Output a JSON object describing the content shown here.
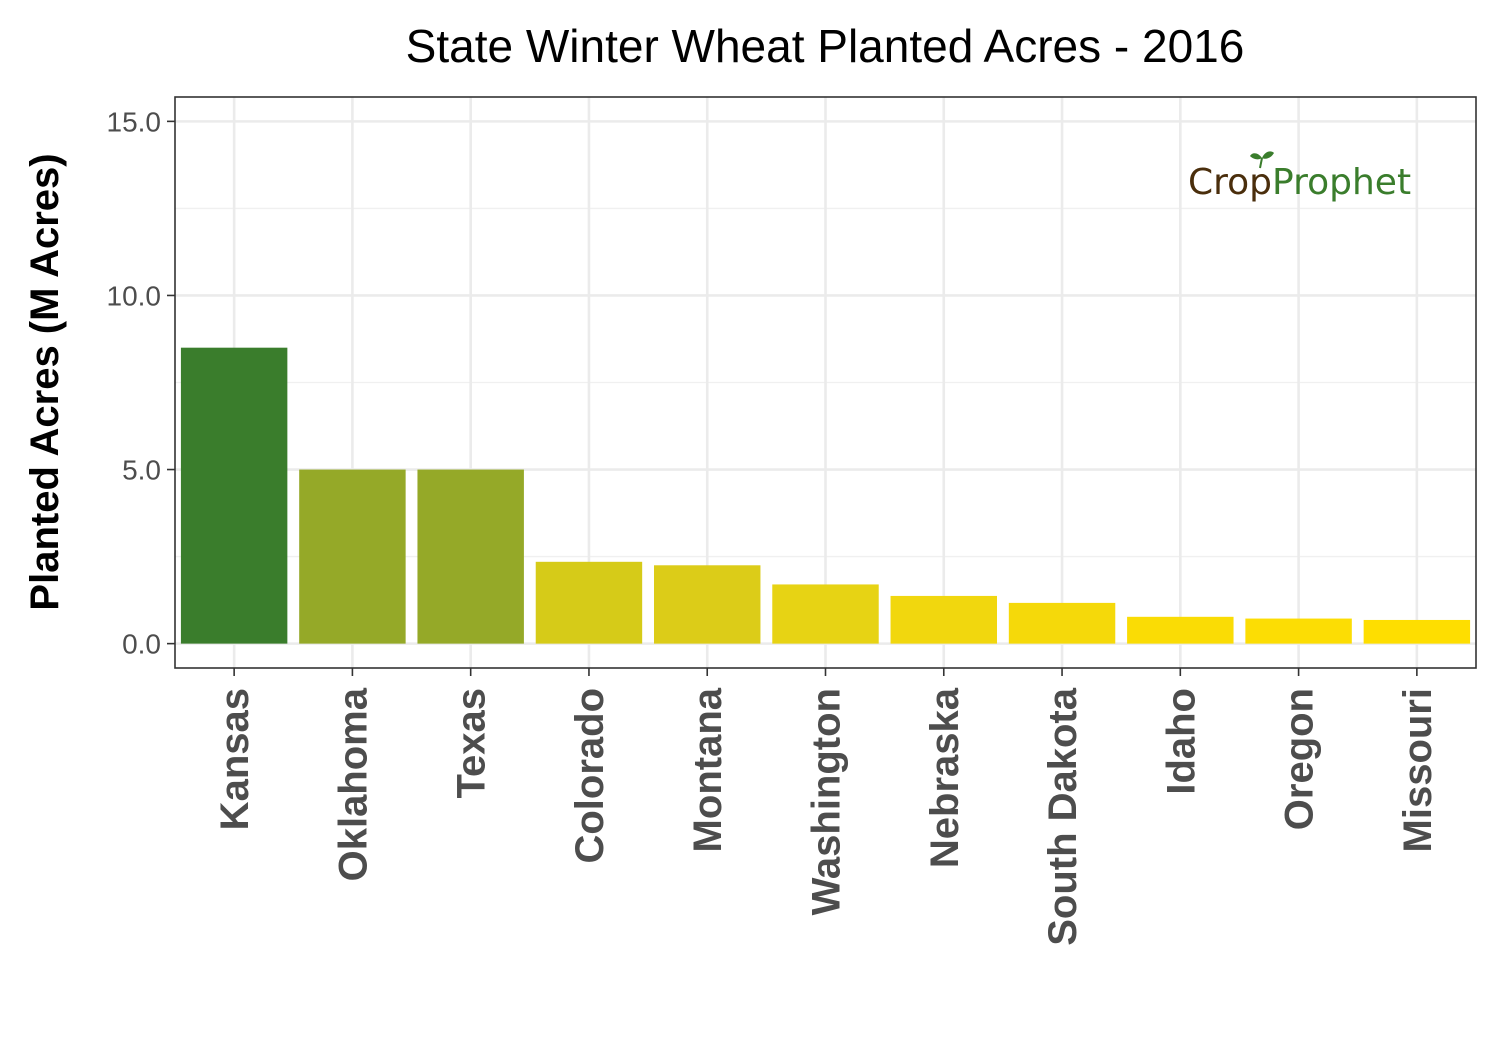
{
  "chart_data": {
    "type": "bar",
    "title": "State Winter Wheat Planted Acres - 2016",
    "ylabel": "Planted Acres (M Acres)",
    "xlabel": "",
    "categories": [
      "Kansas",
      "Oklahoma",
      "Texas",
      "Colorado",
      "Montana",
      "Washington",
      "Nebraska",
      "South Dakota",
      "Idaho",
      "Oregon",
      "Missouri"
    ],
    "values": [
      8.5,
      5.0,
      5.0,
      2.35,
      2.25,
      1.7,
      1.37,
      1.17,
      0.77,
      0.72,
      0.68
    ],
    "bar_colors": [
      "#3a7d2c",
      "#95a928",
      "#95a928",
      "#d6cb18",
      "#dccc18",
      "#e7d314",
      "#f1d70e",
      "#f5d90a",
      "#fadc05",
      "#fcdd04",
      "#fede00"
    ],
    "ylim": [
      -0.7,
      15.7
    ],
    "yticks": [
      0,
      5,
      10,
      15
    ],
    "ytick_labels": [
      "0.0",
      "5.0",
      "10.0",
      "15.0"
    ],
    "grid": true
  },
  "logo": {
    "part1": "Crop",
    "part2": "Prophet",
    "color1": "#4a2e0c",
    "color2": "#3a7d2c"
  }
}
